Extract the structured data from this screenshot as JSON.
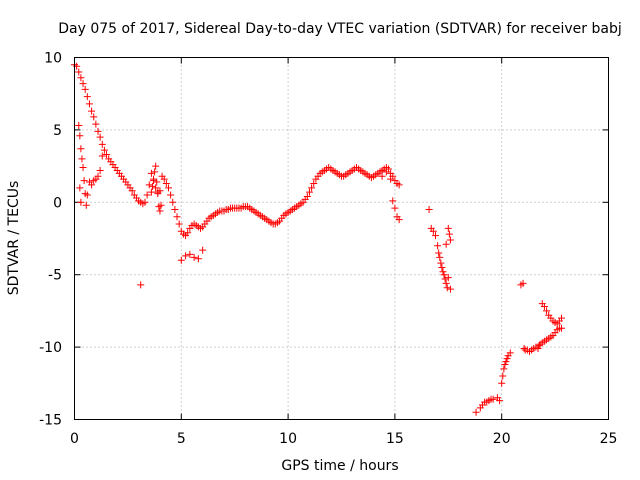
{
  "chart_data": {
    "type": "scatter",
    "title": "Day 075 of 2017, Sidereal Day-to-day VTEC variation (SDTVAR) for receiver babj",
    "xlabel": "GPS time / hours",
    "ylabel": "SDTVAR / TECUs",
    "xlim": [
      0,
      25
    ],
    "ylim": [
      -15,
      10
    ],
    "xticks": [
      0,
      5,
      10,
      15,
      20,
      25
    ],
    "yticks": [
      10,
      5,
      0,
      -5,
      -10,
      -15
    ],
    "xtick_labels": [
      "0",
      "5",
      "10",
      "15",
      "20",
      "25"
    ],
    "ytick_labels": [
      "10",
      "5",
      "0",
      "-5",
      "-10",
      "-15"
    ],
    "grid": true,
    "marker": "+",
    "color": "#ff0000",
    "series": [
      {
        "name": "SDTVAR",
        "x": [
          0.0,
          0.1,
          0.2,
          0.3,
          0.4,
          0.5,
          0.6,
          0.7,
          0.8,
          0.9,
          1.0,
          1.1,
          1.2,
          1.3,
          1.4,
          1.5,
          1.6,
          1.7,
          1.8,
          1.9,
          2.0,
          2.1,
          2.2,
          2.3,
          2.4,
          2.5,
          2.6,
          2.7,
          2.8,
          2.9,
          3.0,
          3.1,
          3.2,
          3.3,
          3.4,
          3.5,
          3.6,
          3.7,
          3.8,
          3.9,
          4.0,
          4.1,
          4.2,
          4.3,
          4.4,
          4.5,
          4.6,
          4.7,
          4.8,
          4.9,
          5.0,
          5.1,
          5.2,
          5.3,
          5.4,
          5.5,
          5.6,
          5.7,
          5.8,
          5.9,
          6.0,
          6.1,
          6.2,
          6.3,
          6.4,
          6.5,
          6.6,
          6.7,
          6.8,
          6.9,
          7.0,
          7.1,
          7.2,
          7.3,
          7.4,
          7.5,
          7.6,
          7.7,
          7.8,
          7.9,
          8.0,
          8.1,
          8.2,
          8.3,
          8.4,
          8.5,
          8.6,
          8.7,
          8.8,
          8.9,
          9.0,
          9.1,
          9.2,
          9.3,
          9.4,
          9.5,
          9.6,
          9.7,
          9.8,
          9.9,
          10.0,
          10.1,
          10.2,
          10.3,
          10.4,
          10.5,
          10.6,
          10.7,
          10.8,
          10.9,
          11.0,
          11.1,
          11.2,
          11.3,
          11.4,
          11.5,
          11.6,
          11.7,
          11.8,
          11.9,
          12.0,
          12.1,
          12.2,
          12.3,
          12.4,
          12.5,
          12.6,
          12.7,
          12.8,
          12.9,
          13.0,
          13.1,
          13.2,
          13.3,
          13.4,
          13.5,
          13.6,
          13.7,
          13.8,
          13.9,
          14.0,
          14.1,
          14.2,
          14.3,
          14.4,
          14.5,
          14.6,
          14.7,
          14.8,
          14.9,
          15.0,
          15.1,
          15.2,
          0.2,
          0.25,
          0.3,
          0.35,
          0.4,
          0.45,
          0.5,
          0.55,
          0.6,
          0.7,
          0.8,
          0.9,
          1.0,
          1.1,
          1.2,
          1.3,
          0.25,
          0.3,
          3.1,
          3.6,
          3.65,
          3.7,
          3.75,
          3.8,
          3.85,
          3.9,
          3.95,
          4.0,
          4.05,
          5.0,
          5.2,
          5.4,
          5.6,
          5.8,
          6.0,
          14.4,
          14.6,
          14.8,
          14.9,
          15.0,
          15.1,
          15.2,
          16.6,
          16.7,
          16.8,
          16.9,
          17.0,
          17.05,
          17.1,
          17.15,
          17.2,
          17.25,
          17.3,
          17.35,
          17.4,
          17.45,
          17.5,
          17.55,
          17.6,
          17.4,
          17.5,
          17.6,
          18.8,
          19.0,
          19.1,
          19.2,
          19.3,
          19.4,
          19.5,
          19.6,
          19.8,
          19.9,
          20.0,
          20.05,
          20.1,
          20.15,
          20.2,
          20.25,
          20.3,
          20.4,
          20.9,
          21.0,
          21.05,
          21.1,
          21.2,
          21.3,
          21.4,
          21.5,
          21.6,
          21.7,
          21.75,
          21.8,
          21.9,
          22.0,
          22.1,
          22.2,
          22.3,
          22.4,
          22.5,
          22.6,
          22.7,
          22.8,
          21.9,
          22.0,
          22.1,
          22.2,
          22.3,
          22.4,
          22.5,
          22.6,
          22.7,
          22.8
        ],
        "y": [
          9.5,
          9.4,
          9.0,
          8.6,
          8.2,
          7.8,
          7.3,
          6.8,
          6.3,
          5.9,
          5.4,
          4.9,
          4.5,
          4.0,
          3.6,
          3.3,
          3.0,
          2.8,
          2.6,
          2.4,
          2.2,
          2.0,
          1.8,
          1.6,
          1.4,
          1.2,
          1.0,
          0.8,
          0.5,
          0.3,
          0.1,
          0.0,
          -0.1,
          0.0,
          0.5,
          1.2,
          2.0,
          1.5,
          1.0,
          0.7,
          0.8,
          1.8,
          1.6,
          1.3,
          1.0,
          0.5,
          0.0,
          -0.5,
          -1.0,
          -1.5,
          -2.0,
          -2.2,
          -2.3,
          -2.1,
          -1.8,
          -1.6,
          -1.5,
          -1.6,
          -1.7,
          -1.8,
          -1.7,
          -1.5,
          -1.3,
          -1.1,
          -1.0,
          -0.9,
          -0.8,
          -0.7,
          -0.6,
          -0.6,
          -0.6,
          -0.5,
          -0.5,
          -0.4,
          -0.4,
          -0.4,
          -0.4,
          -0.4,
          -0.4,
          -0.3,
          -0.3,
          -0.3,
          -0.4,
          -0.5,
          -0.6,
          -0.7,
          -0.8,
          -0.9,
          -1.0,
          -1.1,
          -1.2,
          -1.3,
          -1.4,
          -1.5,
          -1.5,
          -1.4,
          -1.3,
          -1.1,
          -0.9,
          -0.8,
          -0.7,
          -0.6,
          -0.5,
          -0.4,
          -0.3,
          -0.2,
          -0.1,
          0.0,
          0.2,
          0.4,
          0.7,
          1.0,
          1.3,
          1.6,
          1.8,
          2.0,
          2.1,
          2.2,
          2.3,
          2.4,
          2.3,
          2.2,
          2.1,
          2.0,
          1.9,
          1.8,
          1.8,
          1.9,
          2.0,
          2.1,
          2.2,
          2.3,
          2.4,
          2.3,
          2.2,
          2.1,
          2.0,
          1.9,
          1.8,
          1.7,
          1.8,
          1.9,
          2.0,
          2.1,
          2.2,
          2.3,
          2.4,
          2.3,
          2.0,
          1.8,
          1.5,
          1.3,
          1.2,
          5.3,
          4.6,
          3.7,
          3.0,
          2.4,
          1.5,
          0.6,
          -0.2,
          0.5,
          1.4,
          1.2,
          1.5,
          1.6,
          1.8,
          2.2,
          3.2,
          1.0,
          0.0,
          -5.7,
          0.7,
          1.1,
          1.6,
          2.1,
          2.5,
          1.4,
          0.6,
          -0.3,
          -0.6,
          -0.2,
          -4.0,
          -3.7,
          -3.6,
          -3.8,
          -3.9,
          -3.3,
          1.8,
          2.1,
          1.6,
          0.1,
          -0.4,
          -1.0,
          -1.2,
          -0.5,
          -1.8,
          -2.0,
          -2.3,
          -3.0,
          -3.5,
          -3.8,
          -4.2,
          -4.5,
          -4.8,
          -5.0,
          -5.3,
          -5.6,
          -5.9,
          -1.8,
          -2.2,
          -2.6,
          -2.9,
          -5.2,
          -6.0,
          -14.5,
          -14.2,
          -14.0,
          -13.8,
          -13.8,
          -13.7,
          -13.6,
          -13.6,
          -13.5,
          -13.7,
          -12.5,
          -12.0,
          -11.5,
          -11.2,
          -11.0,
          -10.8,
          -10.6,
          -10.4,
          -5.7,
          -5.6,
          -10.1,
          -10.2,
          -10.2,
          -10.3,
          -10.2,
          -10.1,
          -10.0,
          -10.1,
          -9.9,
          -9.8,
          -9.7,
          -9.6,
          -9.5,
          -9.4,
          -9.3,
          -9.2,
          -9.0,
          -8.8,
          -8.7,
          -8.7,
          -7.0,
          -7.2,
          -7.5,
          -7.8,
          -8.0,
          -8.2,
          -8.3,
          -8.4,
          -8.2,
          -8.0
        ]
      }
    ]
  }
}
